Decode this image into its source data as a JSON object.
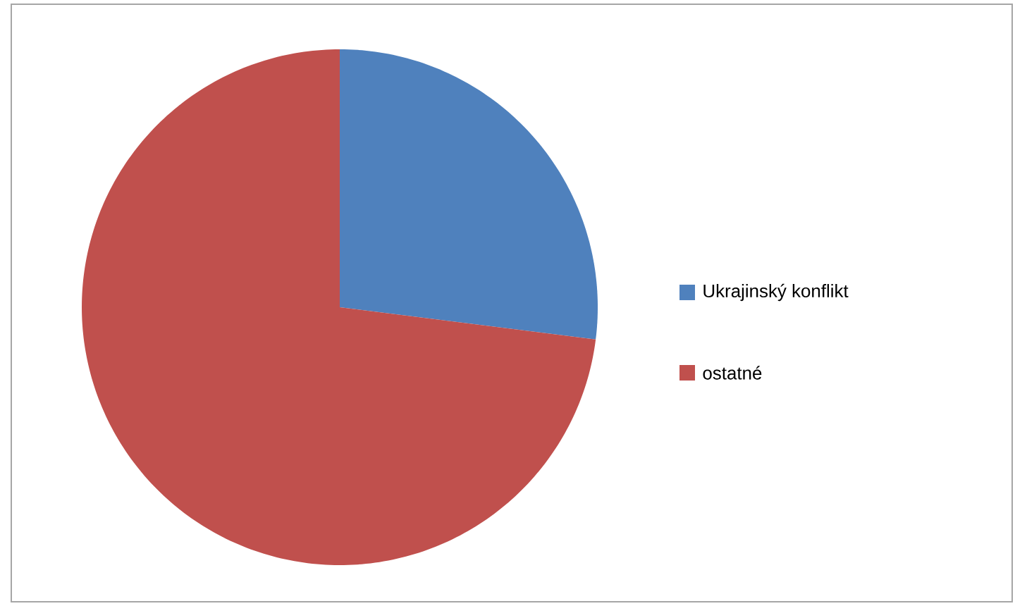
{
  "chart_data": {
    "type": "pie",
    "categories": [
      "Ukrajinský konflikt",
      "ostatné"
    ],
    "values": [
      27,
      73
    ],
    "colors": [
      "#4f81bd",
      "#c0504d"
    ],
    "legend": "right"
  }
}
